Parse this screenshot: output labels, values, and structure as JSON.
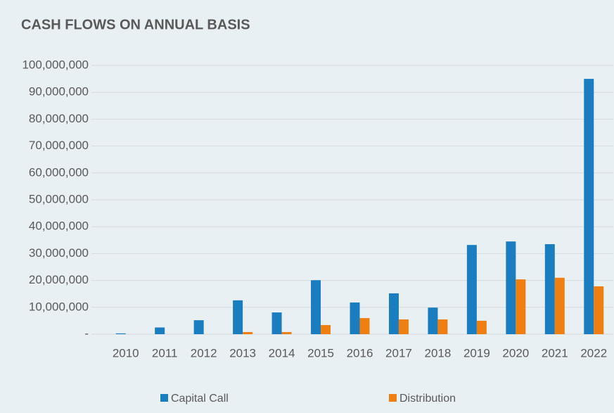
{
  "chart_data": {
    "type": "bar",
    "title": "CASH FLOWS ON ANNUAL BASIS",
    "categories": [
      "2010",
      "2011",
      "2012",
      "2013",
      "2014",
      "2015",
      "2016",
      "2017",
      "2018",
      "2019",
      "2020",
      "2021",
      "2022"
    ],
    "series": [
      {
        "name": "Capital Call",
        "color": "#1a7dc0",
        "values": [
          300000,
          2500000,
          5200000,
          12600000,
          8100000,
          20100000,
          11800000,
          15200000,
          9900000,
          33200000,
          34500000,
          33500000,
          95000000
        ]
      },
      {
        "name": "Distribution",
        "color": "#f07f12",
        "values": [
          0,
          0,
          0,
          800000,
          800000,
          3400000,
          6000000,
          5500000,
          5500000,
          5000000,
          20400000,
          21000000,
          17800000
        ]
      }
    ],
    "ylim": [
      0,
      100000000
    ],
    "yticks": [
      {
        "value": 0,
        "label": "-"
      },
      {
        "value": 10000000,
        "label": "10,000,000"
      },
      {
        "value": 20000000,
        "label": "20,000,000"
      },
      {
        "value": 30000000,
        "label": "30,000,000"
      },
      {
        "value": 40000000,
        "label": "40,000,000"
      },
      {
        "value": 50000000,
        "label": "50,000,000"
      },
      {
        "value": 60000000,
        "label": "60,000,000"
      },
      {
        "value": 70000000,
        "label": "70,000,000"
      },
      {
        "value": 80000000,
        "label": "80,000,000"
      },
      {
        "value": 90000000,
        "label": "90,000,000"
      },
      {
        "value": 100000000,
        "label": "100,000,000"
      }
    ],
    "grid": true,
    "legend": "bottom"
  }
}
